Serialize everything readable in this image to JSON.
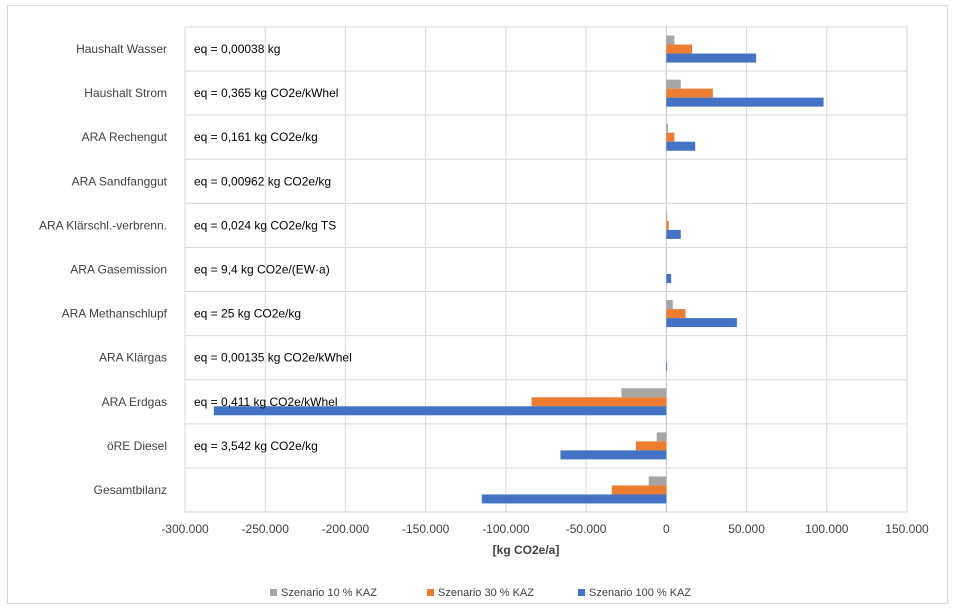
{
  "chart_data": {
    "type": "bar",
    "orientation": "horizontal",
    "categories": [
      "Haushalt Wasser",
      "Haushalt Strom",
      "ARA Rechengut",
      "ARA Sandfanggut",
      "ARA Klärschl.-verbrenn.",
      "ARA Gasemission",
      "ARA Methanschlupf",
      "ARA Klärgas",
      "ARA Erdgas",
      "öRE Diesel",
      "Gesamtbilanz"
    ],
    "annotations": [
      "eq = 0,00038 kg",
      "eq = 0,365 kg CO2e/kWhel",
      "eq = 0,161 kg CO2e/kg",
      "eq = 0,00962 kg CO2e/kg",
      "eq = 0,024 kg CO2e/kg TS",
      "eq = 9,4 kg CO2e/(EW·a)",
      "eq = 25 kg CO2e/kg",
      "eq = 0,00135 kg CO2e/kWhel",
      "eq = 0,411 kg CO2e/kWhel",
      "eq = 3,542 kg CO2e/kg",
      ""
    ],
    "series": [
      {
        "name": "Szenario 10 % KAZ",
        "color": "#a5a5a5",
        "values": [
          5000,
          9000,
          1000,
          0,
          500,
          0,
          4000,
          0,
          -28000,
          -6000,
          -11000
        ]
      },
      {
        "name": "Szenario 30 % KAZ",
        "color": "#ed7d31",
        "values": [
          16000,
          29000,
          5000,
          0,
          1500,
          0,
          12000,
          0,
          -84000,
          -19000,
          -34000
        ]
      },
      {
        "name": "Szenario 100 % KAZ",
        "color": "#4472c4",
        "values": [
          56000,
          98000,
          18000,
          0,
          9000,
          3000,
          44000,
          500,
          -282000,
          -66000,
          -115000
        ]
      }
    ],
    "xlim": [
      -300000,
      150000
    ],
    "xticks": [
      -300000,
      -250000,
      -200000,
      -150000,
      -100000,
      -50000,
      0,
      50000,
      100000,
      150000
    ],
    "xtick_labels": [
      "-300.000",
      "-250.000",
      "-200.000",
      "-150.000",
      "-100.000",
      "-50.000",
      "0",
      "50.000",
      "100.000",
      "150.000"
    ],
    "xlabel": "[kg CO2e/a]",
    "ylabel": "",
    "title": "",
    "grid": true,
    "legend_position": "bottom"
  }
}
